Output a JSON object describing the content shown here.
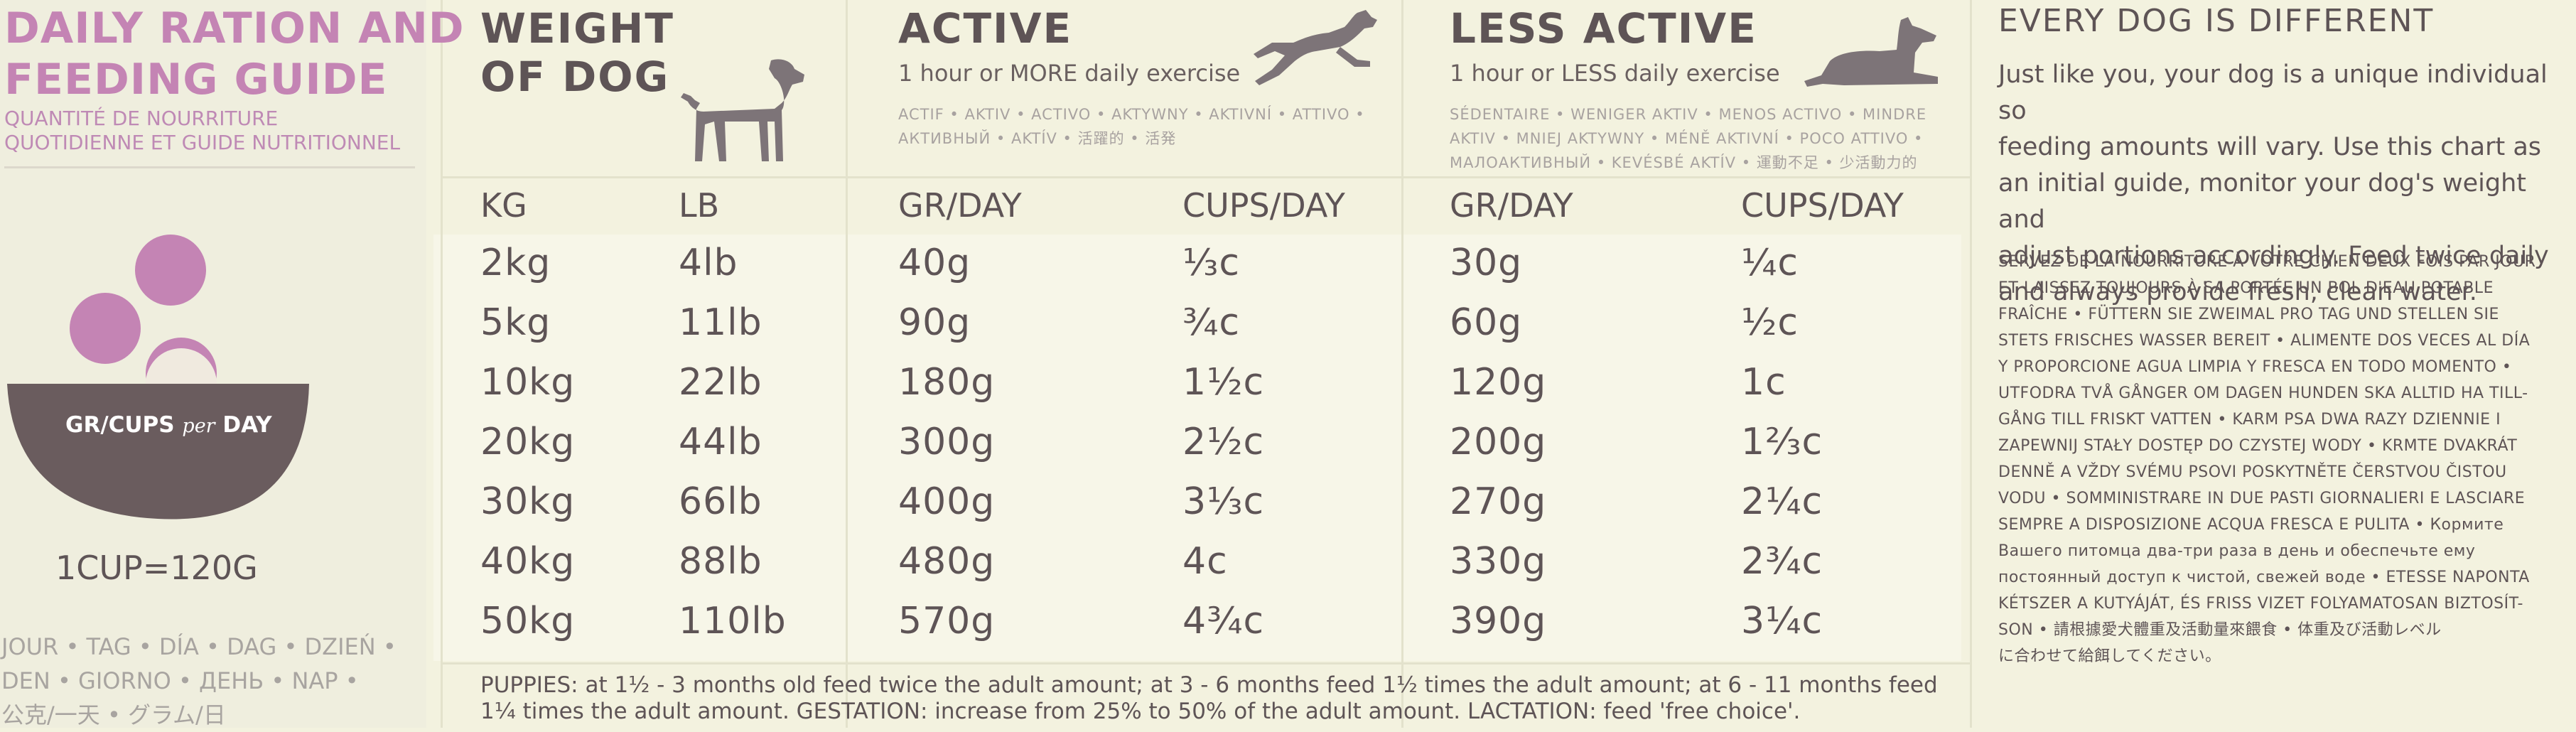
{
  "left": {
    "title_line1": "DAILY RATION AND",
    "title_line2": "FEEDING GUIDE",
    "subtitle_line1": "QUANTITÉ DE NOURRITURE",
    "subtitle_line2": "QUOTIDIENNE ET GUIDE NUTRITIONNEL",
    "bowl_label": "GR/CUPS per DAY",
    "bowl_label_main": "GR/CUPS",
    "bowl_label_per": "per",
    "bowl_label_day": "DAY",
    "cup_conversion": "1CUP=120G",
    "day_words_line1": "JOUR • TAG • DÍA • DAG • DZIEŃ •",
    "day_words_line2": "DEN • GIORNO • ДЕНЬ •  NAP •",
    "day_words_line3": "公克/一天 • グラム/日"
  },
  "weight": {
    "title_line1": "WEIGHT",
    "title_line2": "OF DOG",
    "col_kg": "KG",
    "col_lb": "LB",
    "icon": "standing-dog-icon"
  },
  "active": {
    "title": "ACTIVE",
    "subtitle": "1 hour or MORE daily exercise",
    "lang_line1": "ACTIF • AKTIV • ACTIVO • AKTYWNY • AKTIVNÍ • ATTIVO •",
    "lang_line2": "АКТИВНЫЙ • AKTÍV • 活躍的 • 活発",
    "col_gr": "GR/DAY",
    "col_cups": "CUPS/DAY",
    "icon": "running-dog-icon"
  },
  "less_active": {
    "title": "LESS ACTIVE",
    "subtitle": "1 hour or LESS daily exercise",
    "lang_line1": "SÉDENTAIRE • WENIGER AKTIV • MENOS ACTIVO • MINDRE",
    "lang_line2": "AKTIV • MNIEJ AKTYWNY • MÉNĚ AKTIVNÍ • POCO ATTIVO •",
    "lang_line3": "МАЛОАКТИВНЫЙ • KEVÉSBÉ AKTÍV • 運動不足 • 少活動力的",
    "col_gr": "GR/DAY",
    "col_cups": "CUPS/DAY",
    "icon": "lying-dog-icon"
  },
  "rows": [
    {
      "kg": "2kg",
      "lb": "4lb",
      "a_gr": "40g",
      "a_cups": "⅓c",
      "l_gr": "30g",
      "l_cups": "¼c"
    },
    {
      "kg": "5kg",
      "lb": "11lb",
      "a_gr": "90g",
      "a_cups": "¾c",
      "l_gr": "60g",
      "l_cups": "½c"
    },
    {
      "kg": "10kg",
      "lb": "22lb",
      "a_gr": "180g",
      "a_cups": "1½c",
      "l_gr": "120g",
      "l_cups": "1c"
    },
    {
      "kg": "20kg",
      "lb": "44lb",
      "a_gr": "300g",
      "a_cups": "2½c",
      "l_gr": "200g",
      "l_cups": "1⅔c"
    },
    {
      "kg": "30kg",
      "lb": "66lb",
      "a_gr": "400g",
      "a_cups": "3⅓c",
      "l_gr": "270g",
      "l_cups": "2¼c"
    },
    {
      "kg": "40kg",
      "lb": "88lb",
      "a_gr": "480g",
      "a_cups": "4c",
      "l_gr": "330g",
      "l_cups": "2¾c"
    },
    {
      "kg": "50kg",
      "lb": "110lb",
      "a_gr": "570g",
      "a_cups": "4¾c",
      "l_gr": "390g",
      "l_cups": "3¼c"
    }
  ],
  "footnote_line1": "PUPPIES: at 1½ - 3 months old feed twice the adult amount; at 3 - 6 months feed 1½ times the adult amount; at 6 - 11 months feed",
  "footnote_line2": "1¼ times the adult amount. GESTATION: increase from 25% to 50% of the adult amount. LACTATION: feed 'free choice'.",
  "right": {
    "title": "EVERY DOG IS DIFFERENT",
    "body_lines": [
      "Just like you, your dog is a unique individual so",
      "feeding amounts will vary. Use this chart as",
      "an initial guide, monitor your dog's weight and",
      "adjust portions accordingly. Feed twice daily",
      "and always provide fresh, clean water."
    ],
    "small_lines": [
      "SERVEZ DE LA NOURRITURE À VOTRE CHIEN DEUX FOIS PAR JOUR",
      "ET LAISSEZ TOUJOURS À SA PORTÉE UN BOL D'EAU POTABLE",
      "FRAÎCHE • FÜTTERN SIE ZWEIMAL PRO TAG UND STELLEN SIE",
      "STETS FRISCHES WASSER BEREIT • ALIMENTE DOS VECES AL DÍA",
      "Y PROPORCIONE AGUA LIMPIA Y FRESCA EN TODO MOMENTO •",
      "UTFODRA TVÅ GÅNGER OM DAGEN HUNDEN SKA ALLTID HA TILL-",
      "GÅNG TILL FRISKT VATTEN • KARM PSA DWA RAZY DZIENNIE I",
      "ZAPEWNIJ STAŁY DOSTĘP DO CZYSTEJ WODY • KRMTE DVAKRÁT",
      "DENNĚ A VŽDY SVÉMU PSOVI POSKYTNĚTE ČERSTVOU ČISTOU",
      "VODU • SOMMINISTRARE IN DUE PASTI GIORNALIERI E LASCIARE",
      "SEMPRE A DISPOSIZIONE ACQUA FRESCA E PULITA • Кормите",
      "Вашего питомца два-три раза в день и обеспечьте ему",
      "постоянный доступ к чистой, свежей воде • ETESSE NAPONTA",
      "KÉTSZER A KUTYÁJÁT, ÉS FRISS VIZET FOLYAMATOSAN BIZTOSÍT-",
      "SON • 請根據愛犬體重及活動量來餵食 • 体重及び活動レベル",
      "に合わせて給餌してください。"
    ]
  },
  "colors": {
    "pink": "#c484b4",
    "bowl": "#6a5c5e",
    "background": "#f3f2df"
  }
}
